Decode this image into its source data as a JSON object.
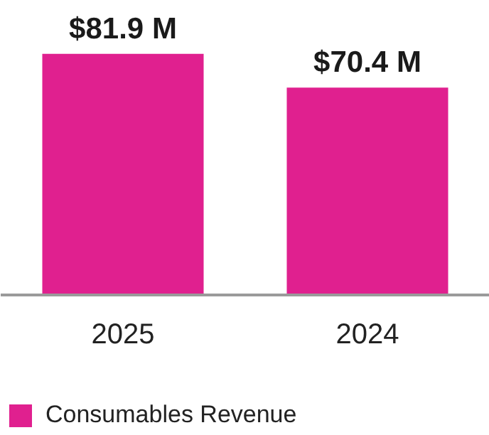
{
  "chart_data": {
    "type": "bar",
    "categories": [
      "2025",
      "2024"
    ],
    "series": [
      {
        "name": "Consumables Revenue",
        "color": "#e0208f",
        "values": [
          81.9,
          70.4
        ],
        "value_labels": [
          "$81.9 M",
          "$70.4 M"
        ]
      }
    ],
    "legend": "bottom"
  }
}
